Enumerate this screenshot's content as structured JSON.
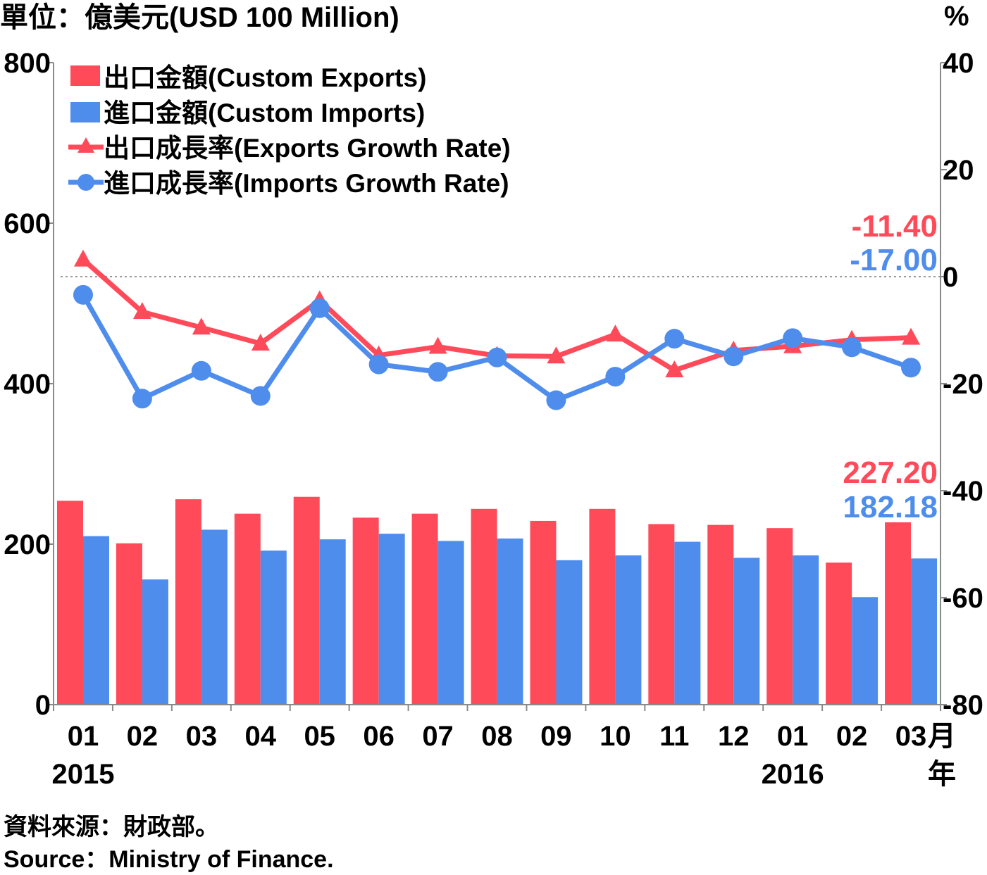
{
  "unit_label": "單位：億美元(USD 100 Million)",
  "right_unit_label": "%",
  "x_axis_month_unit": "月",
  "x_axis_year_unit": "年",
  "source_zh": "資料來源：財政部。",
  "source_en": "Source：Ministry of Finance.",
  "colors": {
    "exports": "#ff4a5a",
    "imports": "#4f8ded",
    "zero_line": "#999999"
  },
  "chart_data": {
    "type": "bar+line",
    "categories": [
      "01",
      "02",
      "03",
      "04",
      "05",
      "06",
      "07",
      "08",
      "09",
      "10",
      "11",
      "12",
      "01",
      "02",
      "03"
    ],
    "year_labels": [
      {
        "index": 0,
        "label": "2015"
      },
      {
        "index": 12,
        "label": "2016"
      }
    ],
    "left_axis": {
      "ylim": [
        0,
        800
      ],
      "ticks": [
        0,
        200,
        400,
        600,
        800
      ]
    },
    "right_axis": {
      "ylim": [
        -80,
        40
      ],
      "ticks": [
        -80,
        -60,
        -40,
        -20,
        0,
        20,
        40
      ]
    },
    "bar_series": [
      {
        "name": "出口金額(Custom Exports)",
        "values": [
          254,
          201,
          256,
          238,
          259,
          233,
          238,
          244,
          229,
          244,
          225,
          224,
          220,
          177,
          227.2
        ]
      },
      {
        "name": "進口金額(Custom Imports)",
        "values": [
          210,
          156,
          218,
          192,
          206,
          213,
          204,
          207,
          180,
          186,
          203,
          183,
          186,
          134,
          182.18
        ]
      }
    ],
    "line_series": [
      {
        "name": "出口成長率(Exports Growth Rate)",
        "marker": "triangle",
        "values": [
          3.2,
          -6.6,
          -9.5,
          -12.5,
          -4.4,
          -14.7,
          -13.1,
          -14.8,
          -14.9,
          -10.8,
          -17.5,
          -13.8,
          -13.0,
          -11.8,
          -11.4
        ]
      },
      {
        "name": "進口成長率(Imports Growth Rate)",
        "marker": "circle",
        "values": [
          -3.4,
          -22.8,
          -17.6,
          -22.3,
          -5.9,
          -16.4,
          -17.8,
          -15.1,
          -23.1,
          -18.7,
          -11.6,
          -14.9,
          -11.5,
          -13.2,
          -17.0
        ]
      }
    ],
    "end_labels": {
      "export_growth": "-11.40",
      "import_growth": "-17.00",
      "export_value": "227.20",
      "import_value": "182.18"
    },
    "legend_placement": "top-left"
  }
}
